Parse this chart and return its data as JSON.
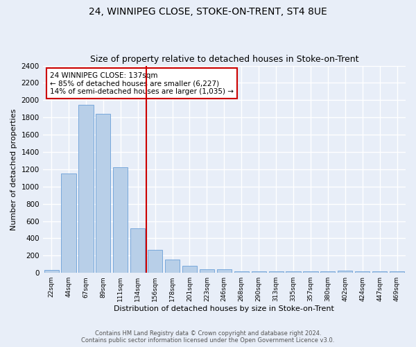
{
  "title1": "24, WINNIPEG CLOSE, STOKE-ON-TRENT, ST4 8UE",
  "title2": "Size of property relative to detached houses in Stoke-on-Trent",
  "xlabel": "Distribution of detached houses by size in Stoke-on-Trent",
  "ylabel": "Number of detached properties",
  "bar_labels": [
    "22sqm",
    "44sqm",
    "67sqm",
    "89sqm",
    "111sqm",
    "134sqm",
    "156sqm",
    "178sqm",
    "201sqm",
    "223sqm",
    "246sqm",
    "268sqm",
    "290sqm",
    "313sqm",
    "335sqm",
    "357sqm",
    "380sqm",
    "402sqm",
    "424sqm",
    "447sqm",
    "469sqm"
  ],
  "bar_values": [
    30,
    1150,
    1950,
    1840,
    1220,
    520,
    270,
    155,
    85,
    45,
    45,
    20,
    20,
    20,
    20,
    20,
    20,
    25,
    20,
    20,
    20
  ],
  "bar_color": "#b8cfe8",
  "bar_edge_color": "#6a9fd8",
  "vline_x": 5.5,
  "vline_color": "#cc0000",
  "annotation_text": "24 WINNIPEG CLOSE: 137sqm\n← 85% of detached houses are smaller (6,227)\n14% of semi-detached houses are larger (1,035) →",
  "annotation_box_color": "white",
  "annotation_box_edge": "#cc0000",
  "ylim": [
    0,
    2400
  ],
  "yticks": [
    0,
    200,
    400,
    600,
    800,
    1000,
    1200,
    1400,
    1600,
    1800,
    2000,
    2200,
    2400
  ],
  "footer1": "Contains HM Land Registry data © Crown copyright and database right 2024.",
  "footer2": "Contains public sector information licensed under the Open Government Licence v3.0.",
  "bg_color": "#e8eef8",
  "grid_color": "white",
  "title1_fontsize": 10,
  "title2_fontsize": 9,
  "xlabel_fontsize": 8,
  "ylabel_fontsize": 8
}
